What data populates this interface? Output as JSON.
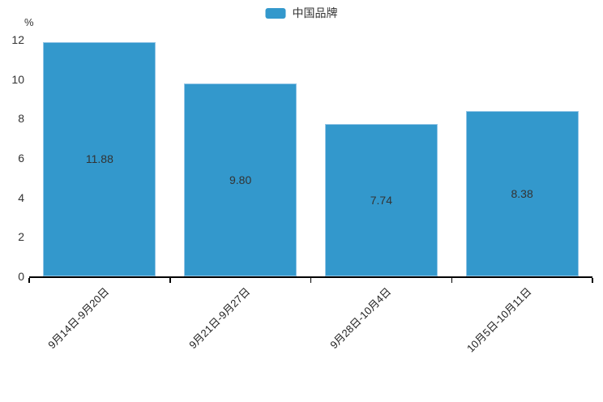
{
  "chart_data": {
    "type": "bar",
    "title": "",
    "unit_label": "%",
    "legend": {
      "position": "top-center",
      "items": [
        {
          "label": "中国品牌",
          "color": "#3398CC"
        }
      ]
    },
    "categories": [
      "9月14日-9月20日",
      "9月21日-9月27日",
      "9月28日-10月4日",
      "10月5日-10月11日"
    ],
    "series": [
      {
        "name": "中国品牌",
        "values": [
          11.88,
          9.8,
          7.74,
          8.38
        ],
        "color": "#3398CC",
        "border_color": "#93C5E6",
        "value_label_color": "#333333"
      }
    ],
    "value_labels": [
      "11.88",
      "9.80",
      "7.74",
      "8.38"
    ],
    "ylim": [
      0,
      12
    ],
    "yticks": [
      0,
      2,
      4,
      6,
      8,
      10,
      12
    ],
    "grid": false,
    "x_label_rotation": -45,
    "colors": {
      "axis_line": "#000000",
      "axis_text": "#333333",
      "background": "#ffffff"
    }
  }
}
